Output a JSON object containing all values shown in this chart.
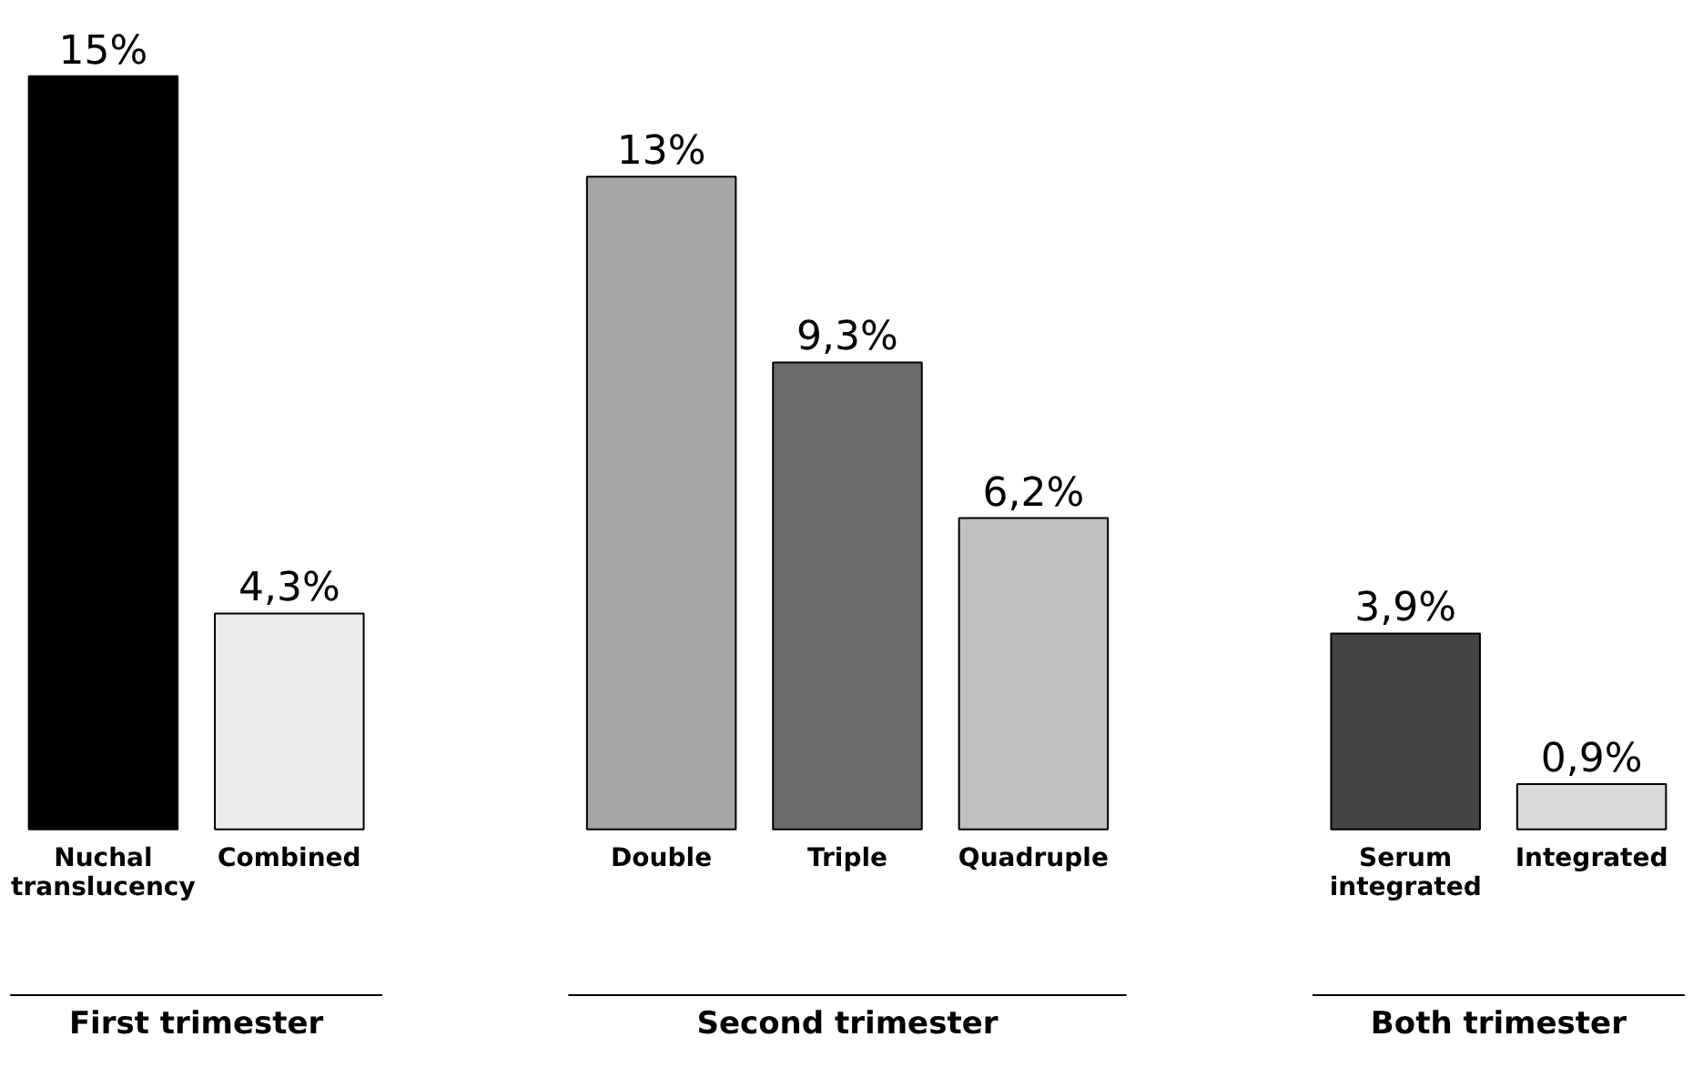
{
  "chart_data": {
    "type": "bar",
    "categories": [
      "Nuchal translucency",
      "Combined",
      null,
      "Double",
      "Triple",
      "Quadruple",
      null,
      "Serum integrated",
      "Integrated"
    ],
    "values": [
      15,
      4.3,
      null,
      13,
      9.3,
      6.2,
      null,
      3.9,
      0.9
    ],
    "colors": [
      "#000000",
      "#ebebeb",
      "#ffffff",
      "#a6a6a6",
      "#6b6b6b",
      "#c0c0c0",
      "#ffffff",
      "#444444",
      "#d9d9d9"
    ],
    "value_labels": [
      "15%",
      "4,3%",
      null,
      "13%",
      "9,3%",
      "6,2%",
      null,
      "3,9%",
      "0,9%"
    ],
    "annotations": [
      "First trimester",
      "Second trimester",
      "Both trimester"
    ]
  }
}
